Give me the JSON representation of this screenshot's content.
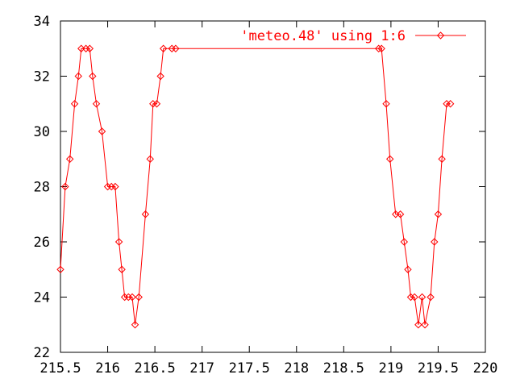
{
  "chart_data": {
    "type": "line",
    "title": "",
    "xlabel": "",
    "ylabel": "",
    "xlim": [
      215.5,
      220
    ],
    "ylim": [
      22,
      34
    ],
    "x_ticks": [
      "215.5",
      "216",
      "216.5",
      "217",
      "217.5",
      "218",
      "218.5",
      "219",
      "219.5",
      "220"
    ],
    "y_ticks": [
      "22",
      "24",
      "26",
      "28",
      "30",
      "32",
      "34"
    ],
    "grid": false,
    "legend_position": "top-right",
    "series": [
      {
        "name": "'meteo.48' using 1:6",
        "color": "#ff0000",
        "marker": "diamond",
        "points": [
          [
            215.5,
            25
          ],
          [
            215.55,
            28
          ],
          [
            215.6,
            29
          ],
          [
            215.65,
            31
          ],
          [
            215.69,
            32
          ],
          [
            215.72,
            33
          ],
          [
            215.77,
            33
          ],
          [
            215.81,
            33
          ],
          [
            215.84,
            32
          ],
          [
            215.88,
            31
          ],
          [
            215.94,
            30
          ],
          [
            216.0,
            28
          ],
          [
            216.04,
            28
          ],
          [
            216.08,
            28
          ],
          [
            216.12,
            26
          ],
          [
            216.15,
            25
          ],
          [
            216.18,
            24
          ],
          [
            216.22,
            24
          ],
          [
            216.26,
            24
          ],
          [
            216.29,
            23
          ],
          [
            216.33,
            24
          ],
          [
            216.4,
            27
          ],
          [
            216.45,
            29
          ],
          [
            216.48,
            31
          ],
          [
            216.52,
            31
          ],
          [
            216.56,
            32
          ],
          [
            216.59,
            33
          ],
          [
            216.68,
            33
          ],
          [
            216.72,
            33
          ],
          [
            218.87,
            33
          ],
          [
            218.9,
            33
          ],
          [
            218.95,
            31
          ],
          [
            218.99,
            29
          ],
          [
            219.05,
            27
          ],
          [
            219.1,
            27
          ],
          [
            219.14,
            26
          ],
          [
            219.18,
            25
          ],
          [
            219.21,
            24
          ],
          [
            219.25,
            24
          ],
          [
            219.29,
            23
          ],
          [
            219.33,
            24
          ],
          [
            219.36,
            23
          ],
          [
            219.42,
            24
          ],
          [
            219.46,
            26
          ],
          [
            219.5,
            27
          ],
          [
            219.54,
            29
          ],
          [
            219.59,
            31
          ],
          [
            219.63,
            31
          ]
        ]
      }
    ]
  }
}
